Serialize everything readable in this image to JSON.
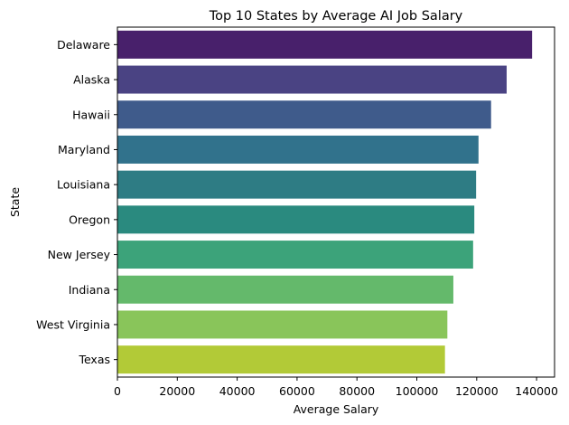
{
  "chart_data": {
    "type": "bar",
    "orientation": "horizontal",
    "title": "Top 10 States by Average AI Job Salary",
    "xlabel": "Average Salary",
    "ylabel": "State",
    "categories": [
      "Delaware",
      "Alaska",
      "Hawaii",
      "Maryland",
      "Louisiana",
      "Oregon",
      "New Jersey",
      "Indiana",
      "West Virginia",
      "Texas"
    ],
    "values": [
      138500,
      130000,
      124800,
      120600,
      119800,
      119200,
      118800,
      112200,
      110200,
      109400
    ],
    "colors": [
      "#48206b",
      "#4a4383",
      "#3f5b8b",
      "#31728c",
      "#2e7c84",
      "#2a8a7f",
      "#3ca37a",
      "#64b96b",
      "#89c55a",
      "#b2ca37"
    ],
    "xlim": [
      0,
      146000
    ],
    "xticks": [
      0,
      20000,
      40000,
      60000,
      80000,
      100000,
      120000,
      140000
    ],
    "xtick_labels": [
      "0",
      "20000",
      "40000",
      "60000",
      "80000",
      "100000",
      "120000",
      "140000"
    ],
    "grid": false,
    "legend": "none"
  }
}
